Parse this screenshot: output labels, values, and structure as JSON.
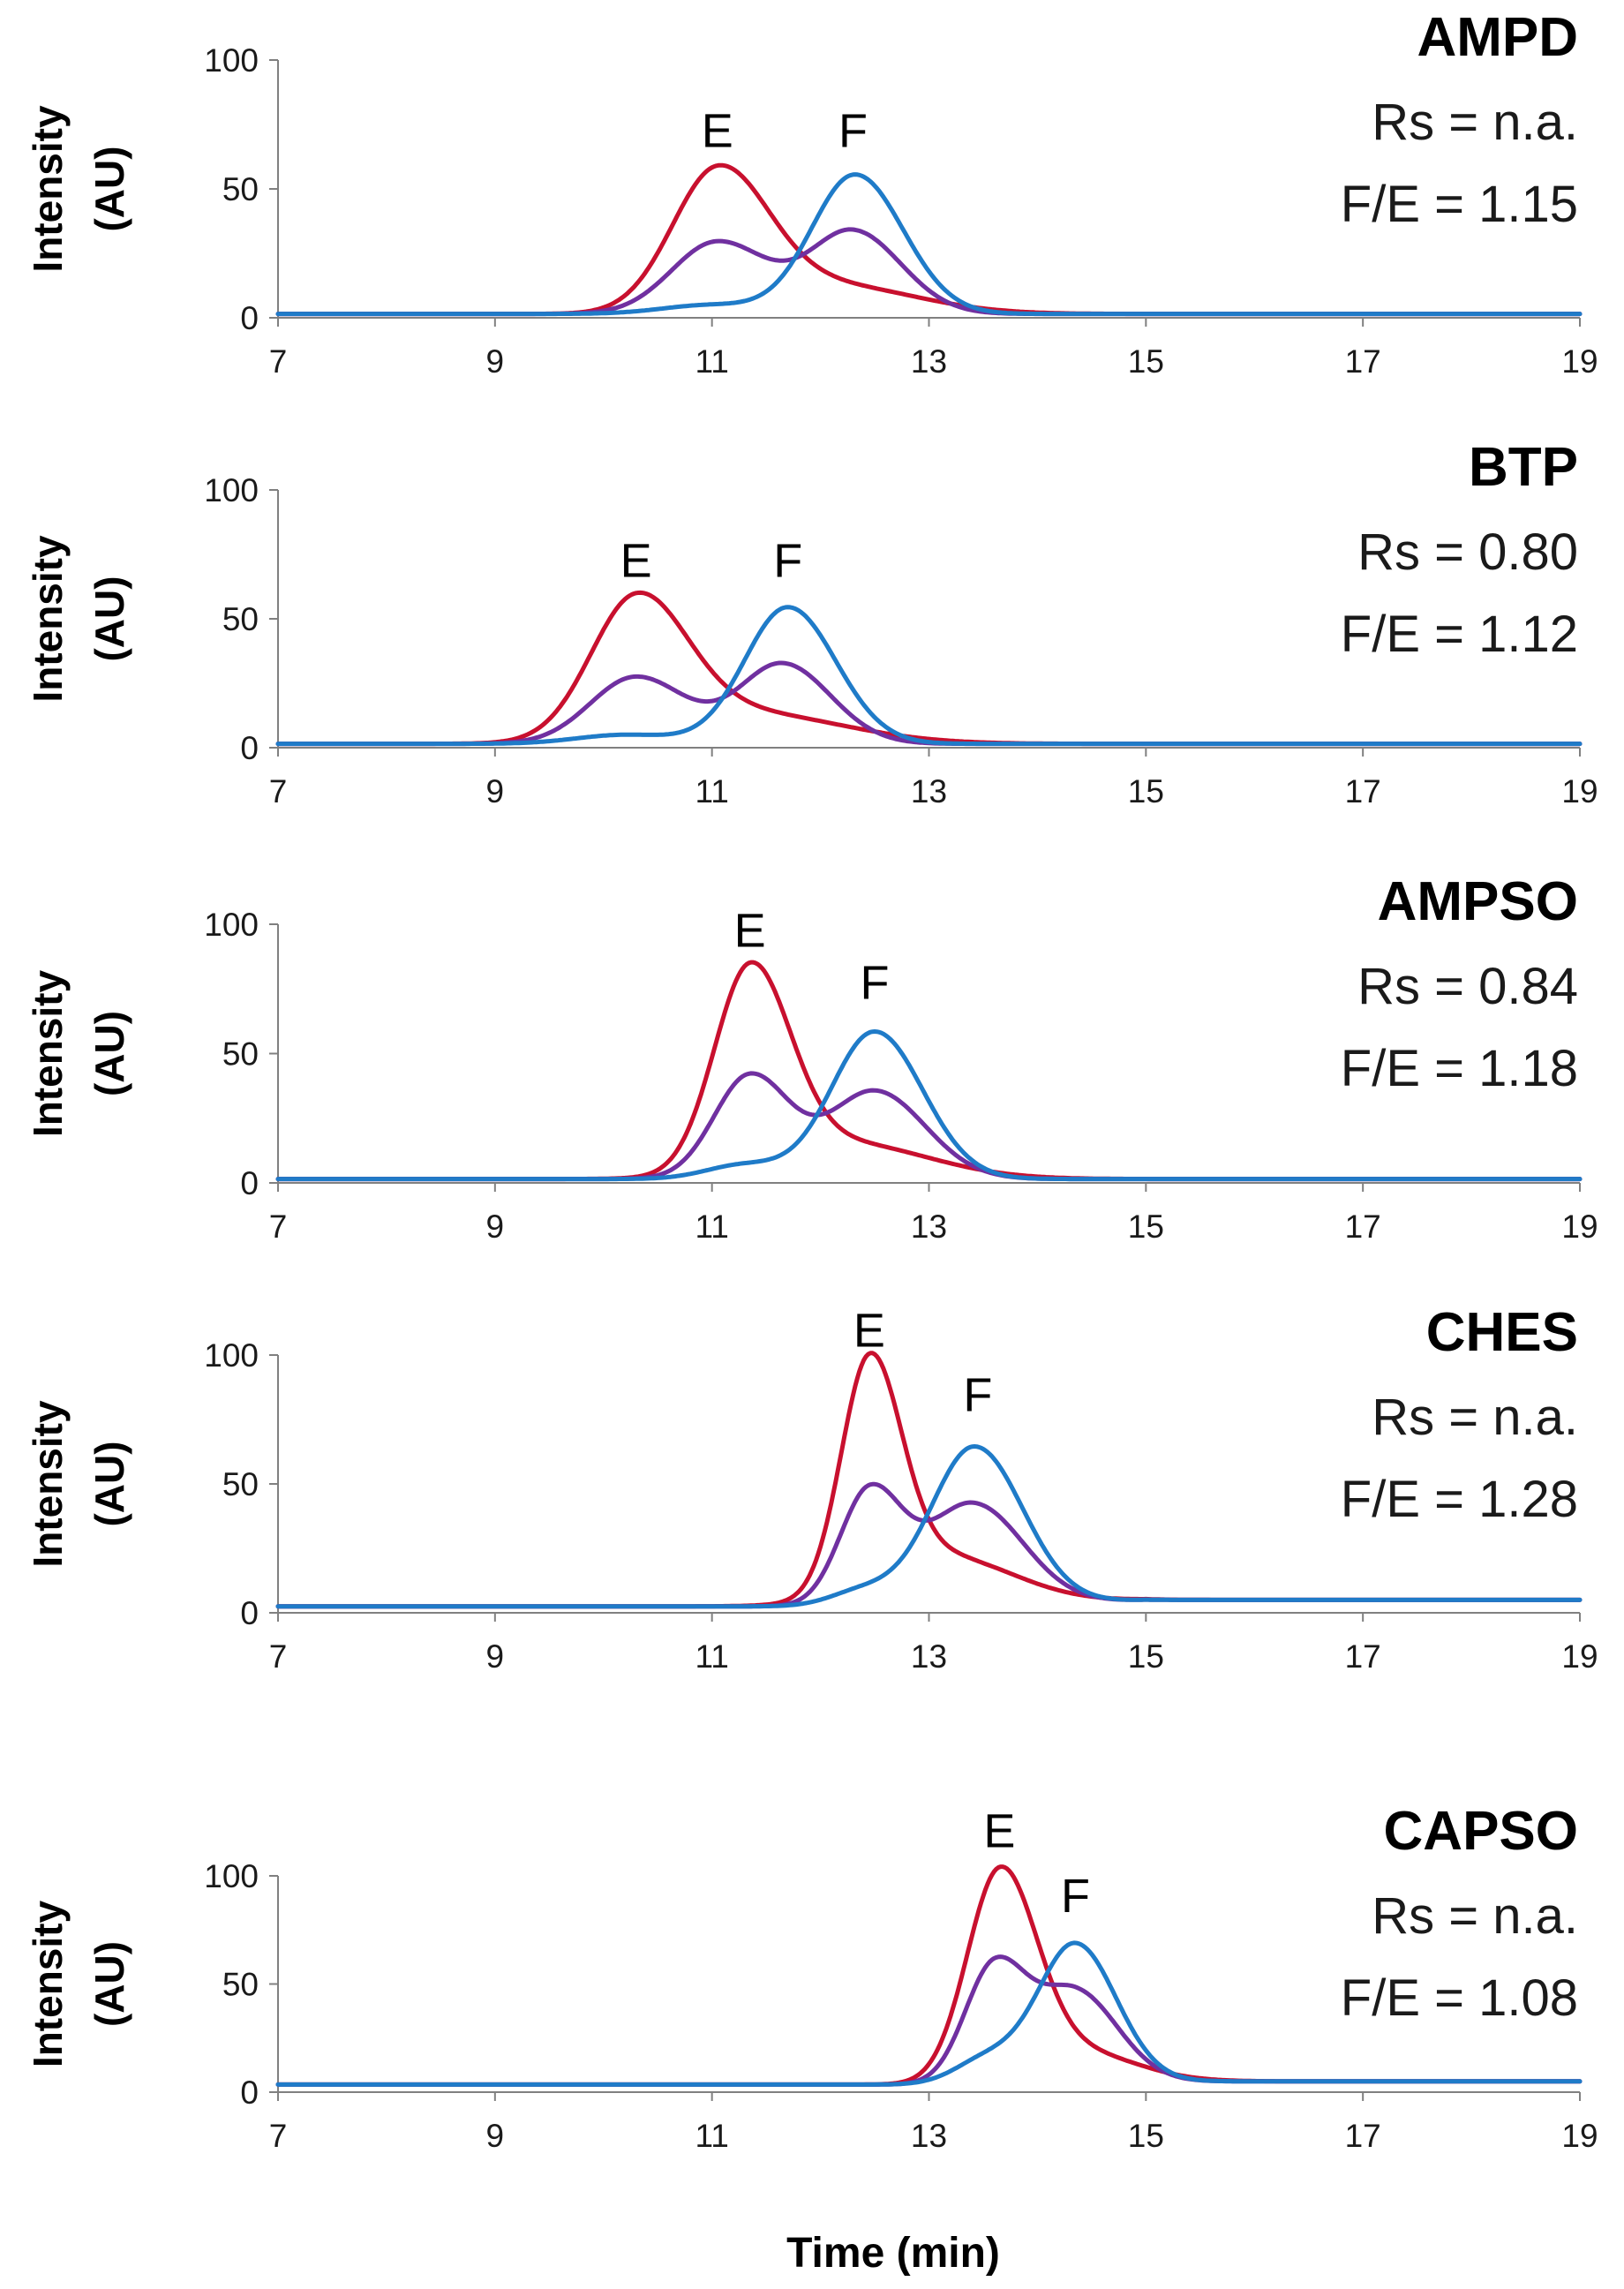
{
  "colors": {
    "E": "#c8102e",
    "F": "#1f7bc8",
    "mixture": "#7030a0"
  },
  "xlabel": "Time (min)",
  "chart_data": [
    {
      "type": "line",
      "title": "AMPD",
      "rs_text": "Rs = n.a.",
      "fe_text": "F/E = 1.15",
      "ylabel_line1": "Intensity",
      "ylabel_line2": "(AU)",
      "xlim": [
        7,
        19
      ],
      "ylim": [
        0,
        100
      ],
      "xticks": [
        "7",
        "9",
        "11",
        "13",
        "15",
        "17",
        "19"
      ],
      "yticks": [
        "0",
        "50",
        "100"
      ],
      "peak_labels": [
        {
          "text": "E",
          "x": 11.05,
          "y": 56
        },
        {
          "text": "F",
          "x": 12.3,
          "y": 56
        }
      ],
      "series": [
        {
          "name": "E",
          "color": "#c8102e",
          "baseline": 1.5,
          "tail": 1.5,
          "peaks": [
            {
              "x": 11.05,
              "h": 54,
              "w": 0.42
            },
            {
              "x": 12.1,
              "h": 11,
              "w": 0.7
            }
          ]
        },
        {
          "name": "mixture",
          "color": "#7030a0",
          "baseline": 1.5,
          "tail": 1.5,
          "peaks": [
            {
              "x": 11.05,
              "h": 28,
              "w": 0.42
            },
            {
              "x": 12.3,
              "h": 32,
              "w": 0.4
            }
          ]
        },
        {
          "name": "F",
          "color": "#1f7bc8",
          "baseline": 1.5,
          "tail": 1.5,
          "peaks": [
            {
              "x": 11.0,
              "h": 3.5,
              "w": 0.45
            },
            {
              "x": 12.32,
              "h": 54,
              "w": 0.4
            }
          ]
        }
      ]
    },
    {
      "type": "line",
      "title": "BTP",
      "rs_text": "Rs = 0.80",
      "fe_text": "F/E = 1.12",
      "ylabel_line1": "Intensity",
      "ylabel_line2": "(AU)",
      "xlim": [
        7,
        19
      ],
      "ylim": [
        0,
        100
      ],
      "xticks": [
        "7",
        "9",
        "11",
        "13",
        "15",
        "17",
        "19"
      ],
      "yticks": [
        "0",
        "50",
        "100"
      ],
      "peak_labels": [
        {
          "text": "E",
          "x": 10.3,
          "y": 56
        },
        {
          "text": "F",
          "x": 11.7,
          "y": 56
        }
      ],
      "series": [
        {
          "name": "E",
          "color": "#c8102e",
          "baseline": 1.5,
          "tail": 1.5,
          "peaks": [
            {
              "x": 10.3,
              "h": 53,
              "w": 0.42
            },
            {
              "x": 11.3,
              "h": 12,
              "w": 0.8
            }
          ]
        },
        {
          "name": "mixture",
          "color": "#7030a0",
          "baseline": 1.5,
          "tail": 1.5,
          "peaks": [
            {
              "x": 10.3,
              "h": 26,
              "w": 0.42
            },
            {
              "x": 11.65,
              "h": 31,
              "w": 0.4
            }
          ]
        },
        {
          "name": "F",
          "color": "#1f7bc8",
          "baseline": 1.5,
          "tail": 1.5,
          "peaks": [
            {
              "x": 10.2,
              "h": 3.5,
              "w": 0.45
            },
            {
              "x": 11.7,
              "h": 53,
              "w": 0.4
            }
          ]
        }
      ]
    },
    {
      "type": "line",
      "title": "AMPSO",
      "rs_text": "Rs = 0.84",
      "fe_text": "F/E = 1.18",
      "ylabel_line1": "Intensity",
      "ylabel_line2": "(AU)",
      "xlim": [
        7,
        19
      ],
      "ylim": [
        0,
        100
      ],
      "xticks": [
        "7",
        "9",
        "11",
        "13",
        "15",
        "17",
        "19"
      ],
      "yticks": [
        "0",
        "50",
        "100"
      ],
      "peak_labels": [
        {
          "text": "E",
          "x": 11.35,
          "y": 81
        },
        {
          "text": "F",
          "x": 12.5,
          "y": 61
        }
      ],
      "series": [
        {
          "name": "E",
          "color": "#c8102e",
          "baseline": 1.5,
          "tail": 1.5,
          "peaks": [
            {
              "x": 11.35,
              "h": 77,
              "w": 0.33
            },
            {
              "x": 12.2,
              "h": 14,
              "w": 0.7
            }
          ]
        },
        {
          "name": "mixture",
          "color": "#7030a0",
          "baseline": 1.5,
          "tail": 1.5,
          "peaks": [
            {
              "x": 11.35,
              "h": 40,
              "w": 0.33
            },
            {
              "x": 12.5,
              "h": 34,
              "w": 0.42
            }
          ]
        },
        {
          "name": "F",
          "color": "#1f7bc8",
          "baseline": 1.5,
          "tail": 1.5,
          "peaks": [
            {
              "x": 11.3,
              "h": 5.5,
              "w": 0.35
            },
            {
              "x": 12.5,
              "h": 57,
              "w": 0.4
            }
          ]
        }
      ]
    },
    {
      "type": "line",
      "title": "CHES",
      "rs_text": "Rs = n.a.",
      "fe_text": "F/E = 1.28",
      "ylabel_line1": "Intensity",
      "ylabel_line2": "(AU)",
      "xlim": [
        7,
        19
      ],
      "ylim": [
        0,
        100
      ],
      "xticks": [
        "7",
        "9",
        "11",
        "13",
        "15",
        "17",
        "19"
      ],
      "yticks": [
        "0",
        "50",
        "100"
      ],
      "peak_labels": [
        {
          "text": "E",
          "x": 12.45,
          "y": 93
        },
        {
          "text": "F",
          "x": 13.45,
          "y": 68
        }
      ],
      "series": [
        {
          "name": "E",
          "color": "#c8102e",
          "baseline": 2.5,
          "tail": 5,
          "peaks": [
            {
              "x": 12.45,
              "h": 87,
              "w": 0.26
            },
            {
              "x": 13.1,
              "h": 20,
              "w": 0.6
            }
          ]
        },
        {
          "name": "mixture",
          "color": "#7030a0",
          "baseline": 2.5,
          "tail": 5,
          "peaks": [
            {
              "x": 12.45,
              "h": 44,
              "w": 0.27
            },
            {
              "x": 13.4,
              "h": 40,
              "w": 0.42
            }
          ]
        },
        {
          "name": "F",
          "color": "#1f7bc8",
          "baseline": 2.5,
          "tail": 5,
          "peaks": [
            {
              "x": 12.4,
              "h": 6,
              "w": 0.3
            },
            {
              "x": 13.42,
              "h": 62,
              "w": 0.4
            }
          ]
        }
      ]
    },
    {
      "type": "line",
      "title": "CAPSO",
      "rs_text": "Rs = n.a.",
      "fe_text": "F/E = 1.08",
      "ylabel_line1": "Intensity",
      "ylabel_line2": "(AU)",
      "xlim": [
        7,
        19
      ],
      "ylim": [
        0,
        100
      ],
      "xticks": [
        "7",
        "9",
        "11",
        "13",
        "15",
        "17",
        "19"
      ],
      "yticks": [
        "0",
        "50",
        "100"
      ],
      "peak_labels": [
        {
          "text": "E",
          "x": 13.65,
          "y": 101
        },
        {
          "text": "F",
          "x": 14.35,
          "y": 71
        }
      ],
      "series": [
        {
          "name": "E",
          "color": "#c8102e",
          "baseline": 3.5,
          "tail": 5,
          "peaks": [
            {
              "x": 13.65,
              "h": 94,
              "w": 0.3
            },
            {
              "x": 14.3,
              "h": 15,
              "w": 0.5
            }
          ]
        },
        {
          "name": "mixture",
          "color": "#7030a0",
          "baseline": 3.5,
          "tail": 5,
          "peaks": [
            {
              "x": 13.6,
              "h": 54,
              "w": 0.27
            },
            {
              "x": 14.35,
              "h": 42,
              "w": 0.35
            }
          ]
        },
        {
          "name": "F",
          "color": "#1f7bc8",
          "baseline": 3.5,
          "tail": 5,
          "peaks": [
            {
              "x": 13.55,
              "h": 12,
              "w": 0.3
            },
            {
              "x": 14.35,
              "h": 64,
              "w": 0.34
            }
          ]
        }
      ]
    }
  ]
}
